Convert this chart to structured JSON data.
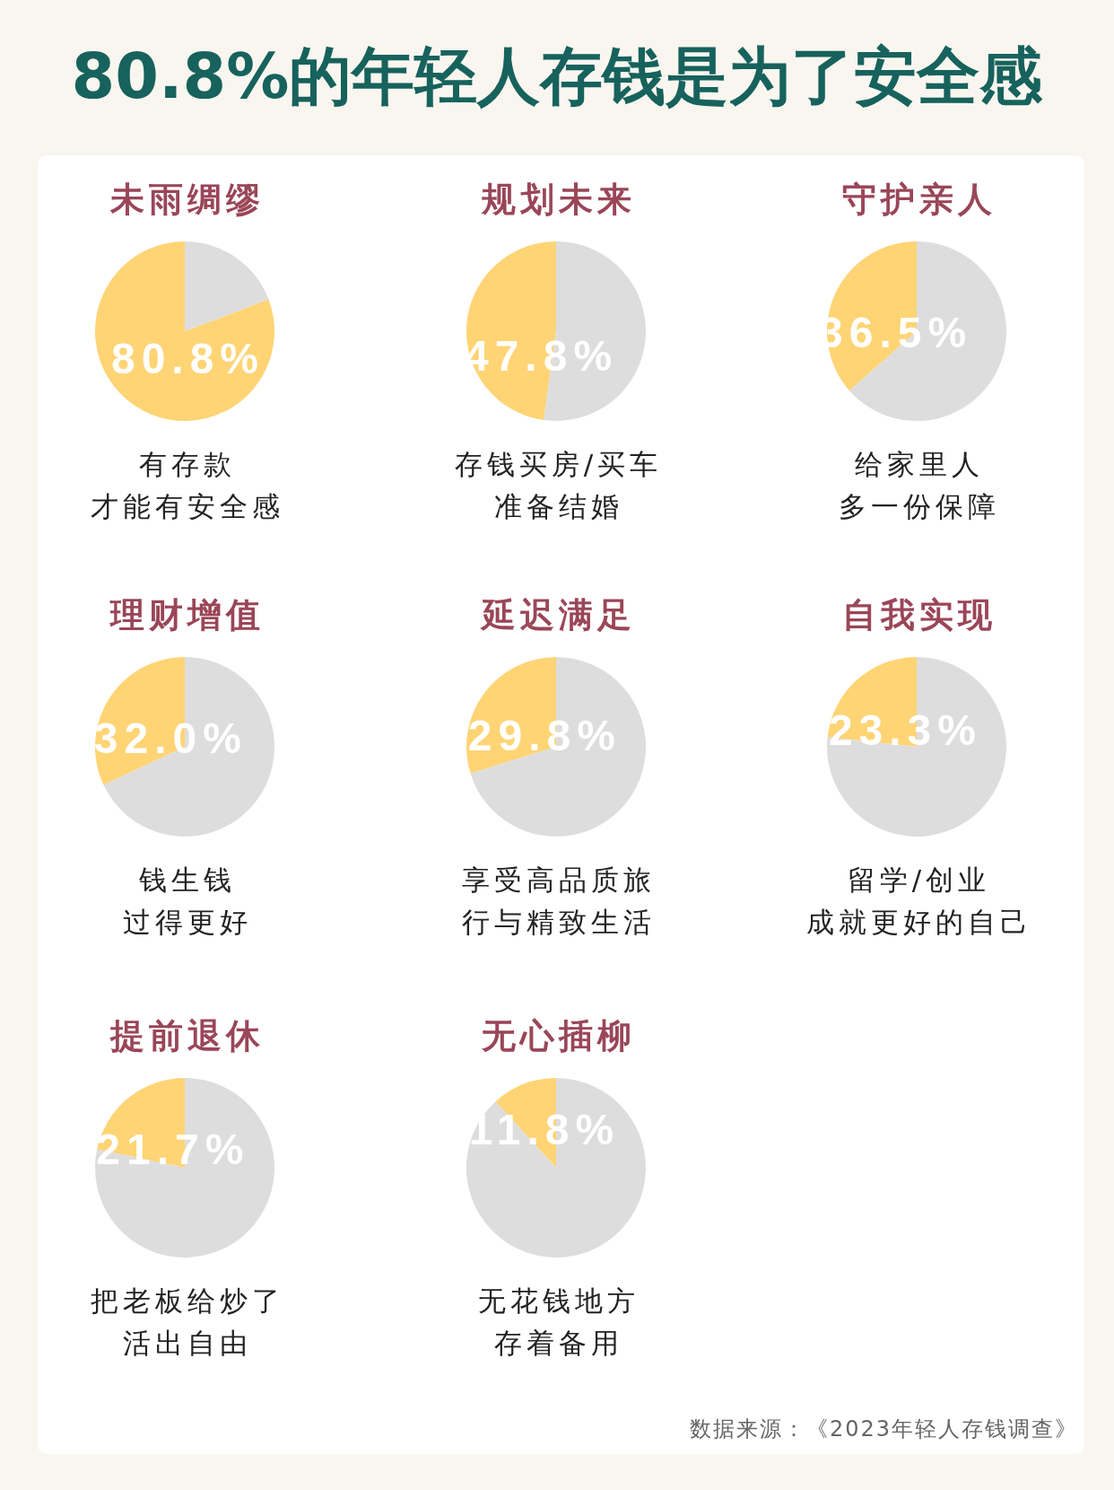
{
  "chart_data": [
    {
      "type": "other",
      "title": "80.8%的年轻人存钱是为了安全感"
    },
    {
      "type": "pie",
      "title": "未雨绸缪",
      "categories": [
        null,
        null
      ],
      "values": [
        80.8,
        19.2
      ],
      "colors": [
        "#ffd475",
        "#dddddd"
      ],
      "value_labels": [
        "80.8%",
        null
      ],
      "annotations": [
        "有存款",
        "才能有安全感"
      ]
    },
    {
      "type": "pie",
      "title": "规划未来",
      "categories": [
        null,
        null
      ],
      "values": [
        47.8,
        52.2
      ],
      "colors": [
        "#ffd475",
        "#dddddd"
      ],
      "value_labels": [
        "47.8%",
        null
      ],
      "annotations": [
        "存钱买房/买车",
        "准备结婚"
      ]
    },
    {
      "type": "pie",
      "title": "守护亲人",
      "categories": [
        null,
        null
      ],
      "values": [
        36.5,
        63.5
      ],
      "colors": [
        "#ffd475",
        "#dddddd"
      ],
      "value_labels": [
        "36.5%",
        null
      ],
      "annotations": [
        "给家里人",
        "多一份保障"
      ]
    },
    {
      "type": "pie",
      "title": "理财增值",
      "categories": [
        null,
        null
      ],
      "values": [
        32.0,
        68.0
      ],
      "colors": [
        "#ffd475",
        "#dddddd"
      ],
      "value_labels": [
        "32.0%",
        null
      ],
      "annotations": [
        "钱生钱",
        "过得更好"
      ]
    },
    {
      "type": "pie",
      "title": "延迟满足",
      "categories": [
        null,
        null
      ],
      "values": [
        29.8,
        70.2
      ],
      "colors": [
        "#ffd475",
        "#dddddd"
      ],
      "value_labels": [
        "29.8%",
        null
      ],
      "annotations": [
        "享受高品质旅",
        "行与精致生活"
      ]
    },
    {
      "type": "pie",
      "title": "自我实现",
      "categories": [
        null,
        null
      ],
      "values": [
        23.3,
        76.7
      ],
      "colors": [
        "#ffd475",
        "#dddddd"
      ],
      "value_labels": [
        "23.3%",
        null
      ],
      "annotations": [
        "留学/创业",
        "成就更好的自己"
      ]
    },
    {
      "type": "pie",
      "title": "提前退休",
      "categories": [
        null,
        null
      ],
      "values": [
        21.7,
        78.3
      ],
      "colors": [
        "#ffd475",
        "#dddddd"
      ],
      "value_labels": [
        "21.7%",
        null
      ],
      "annotations": [
        "把老板给炒了",
        "活出自由"
      ]
    },
    {
      "type": "pie",
      "title": "无心插柳",
      "categories": [
        null,
        null
      ],
      "values": [
        11.8,
        88.2
      ],
      "colors": [
        "#ffd475",
        "#dddddd"
      ],
      "value_labels": [
        "11.8%",
        null
      ],
      "annotations": [
        "无花钱地方",
        "存着备用"
      ]
    },
    {
      "type": "other",
      "annotations": [
        "数据来源：《2023年轻人存钱调查》"
      ]
    }
  ]
}
